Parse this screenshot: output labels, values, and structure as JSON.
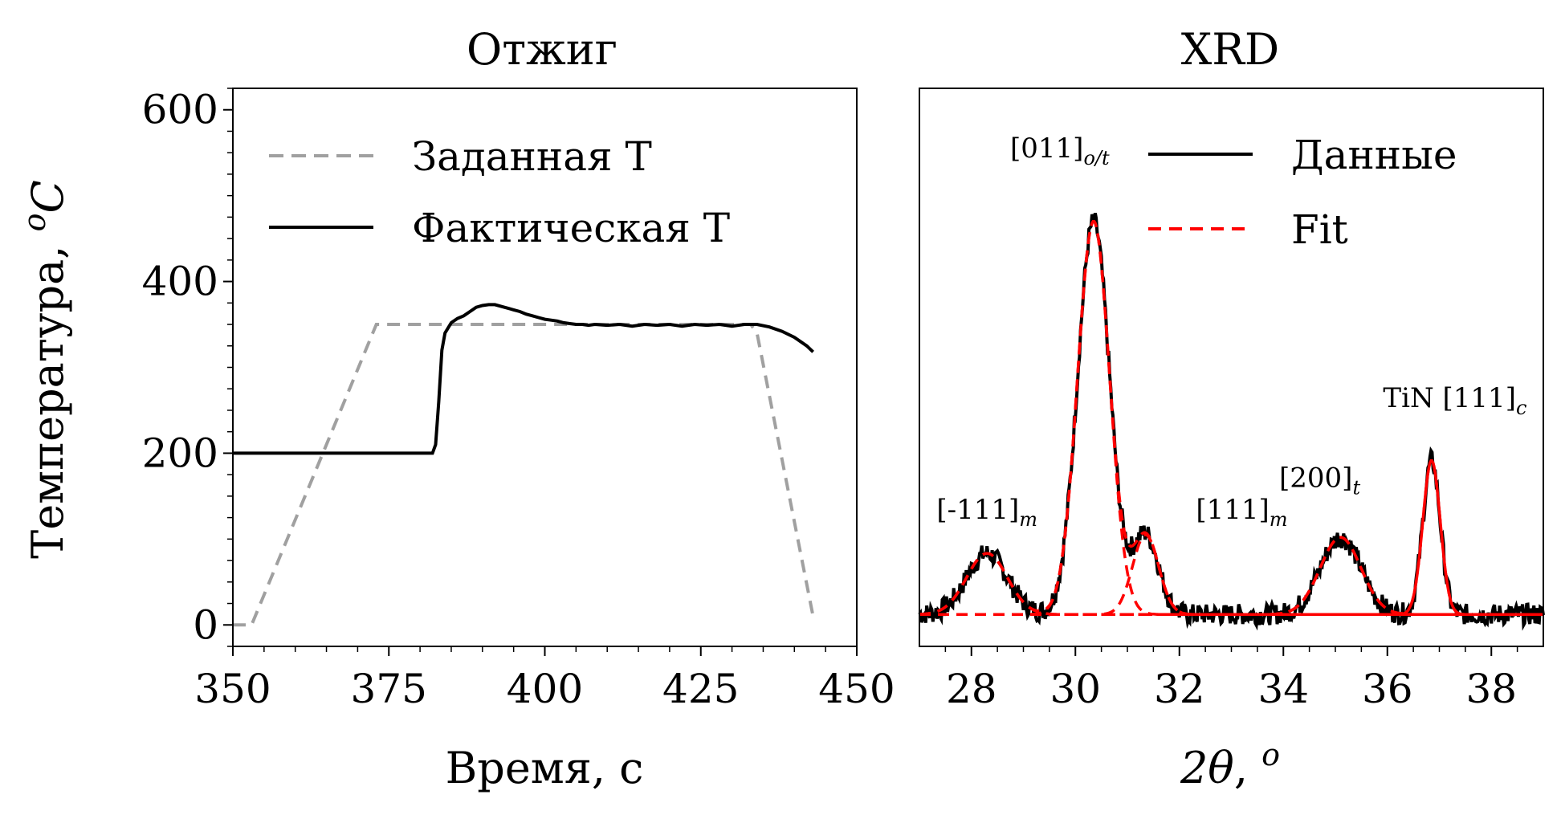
{
  "chart_data": [
    {
      "type": "line",
      "title": "Отжиг",
      "xlabel": "Время, с",
      "ylabel_text": "Температура, ",
      "ylabel_unit": "oC",
      "xlim": [
        350,
        450
      ],
      "ylim": [
        -25,
        625
      ],
      "xticks": [
        350,
        375,
        400,
        425,
        450
      ],
      "yticks": [
        0,
        200,
        400,
        600
      ],
      "legend_position": "top-left",
      "series": [
        {
          "name": "Заданная T",
          "color": "#a0a0a0",
          "style": "dashed",
          "points": [
            [
              350,
              0
            ],
            [
              353,
              0
            ],
            [
              373,
              350
            ],
            [
              433,
              350
            ],
            [
              434,
              340
            ],
            [
              443,
              10
            ]
          ]
        },
        {
          "name": "Фактическая T",
          "color": "#000000",
          "style": "solid",
          "points": [
            [
              350,
              200
            ],
            [
              382,
              200
            ],
            [
              382.5,
              210
            ],
            [
              383,
              260
            ],
            [
              383.5,
              320
            ],
            [
              384,
              340
            ],
            [
              385,
              352
            ],
            [
              386,
              357
            ],
            [
              387,
              360
            ],
            [
              388,
              365
            ],
            [
              389,
              370
            ],
            [
              390,
              372
            ],
            [
              391,
              373
            ],
            [
              392,
              373
            ],
            [
              393,
              371
            ],
            [
              394,
              369
            ],
            [
              395,
              367
            ],
            [
              396,
              365
            ],
            [
              397,
              362
            ],
            [
              398,
              360
            ],
            [
              399,
              358
            ],
            [
              400,
              356
            ],
            [
              401,
              355
            ],
            [
              402,
              354
            ],
            [
              403,
              352
            ],
            [
              404,
              351
            ],
            [
              405,
              350
            ],
            [
              406,
              350
            ],
            [
              407,
              349
            ],
            [
              408,
              350
            ],
            [
              410,
              349
            ],
            [
              412,
              350
            ],
            [
              414,
              348
            ],
            [
              416,
              350
            ],
            [
              418,
              349
            ],
            [
              420,
              350
            ],
            [
              422,
              348
            ],
            [
              424,
              350
            ],
            [
              426,
              349
            ],
            [
              428,
              350
            ],
            [
              430,
              348
            ],
            [
              432,
              350
            ],
            [
              434,
              350
            ],
            [
              436,
              347
            ],
            [
              438,
              342
            ],
            [
              440,
              335
            ],
            [
              442,
              325
            ],
            [
              443,
              318
            ]
          ]
        }
      ]
    },
    {
      "type": "line",
      "title": "XRD",
      "xlabel": "2θ, o",
      "xlim": [
        27,
        39
      ],
      "ylim": [
        -0.05,
        1.0
      ],
      "xticks": [
        28,
        30,
        32,
        34,
        36,
        38
      ],
      "legend_position": "top-right",
      "series": [
        {
          "name": "Данные",
          "color": "#000000",
          "style": "solid"
        },
        {
          "name": "Fit",
          "color": "#ff0000",
          "style": "dashed"
        }
      ],
      "baseline": 0.01,
      "peaks": [
        {
          "center": 28.3,
          "height": 0.115,
          "width": 0.7
        },
        {
          "center": 30.35,
          "height": 0.74,
          "width": 0.55
        },
        {
          "center": 31.35,
          "height": 0.15,
          "width": 0.45
        },
        {
          "center": 35.1,
          "height": 0.145,
          "width": 0.7
        },
        {
          "center": 36.85,
          "height": 0.29,
          "width": 0.3
        }
      ],
      "annotations": [
        {
          "text": "[-111]",
          "sub": "m",
          "x": 28.3,
          "y": 0.19
        },
        {
          "text": "[011]",
          "sub": "o/t",
          "x": 29.7,
          "y": 0.87
        },
        {
          "text": "[111]",
          "sub": "m",
          "x": 33.2,
          "y": 0.19
        },
        {
          "text": "[200]",
          "sub": "t",
          "x": 34.7,
          "y": 0.25
        },
        {
          "text": "TiN [111]",
          "sub": "c",
          "x": 37.3,
          "y": 0.4
        }
      ]
    }
  ]
}
